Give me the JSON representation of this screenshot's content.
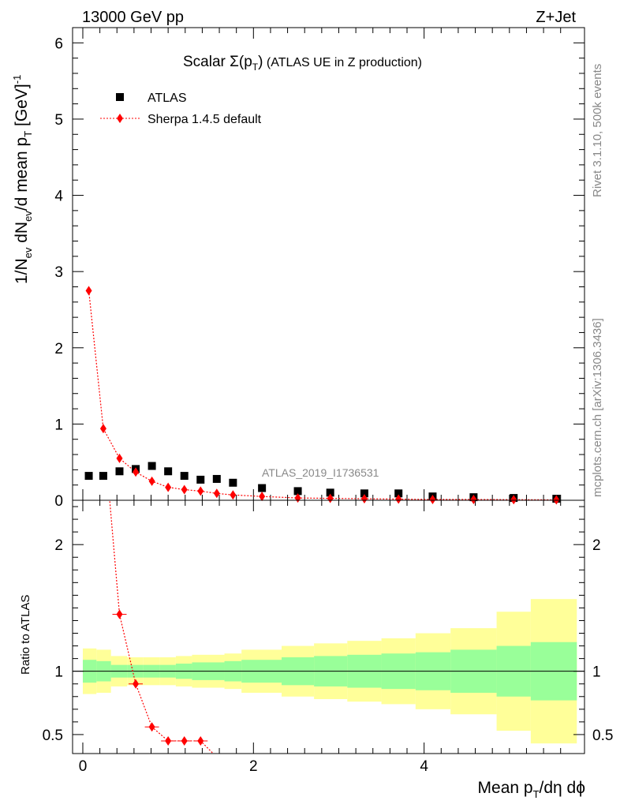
{
  "header": {
    "left": "13000 GeV pp",
    "right": "Z+Jet"
  },
  "side_labels": {
    "rivet": "Rivet 3.1.10,  500k events",
    "source": "mcplots.cern.ch [arXiv:1306.3436]"
  },
  "watermark": "ATLAS_2019_I1736531",
  "chart_data": [
    {
      "type": "scatter",
      "panel": "main",
      "title_main": "Scalar ",
      "title_sigma": "Σ(p",
      "title_sub": "T",
      "title_close": ")",
      "title_rest": " (ATLAS UE in Z production)",
      "ylabel": "1/N_ev dN_ev/d mean p_T [GeV]^-1",
      "ylabel_parts": {
        "a": "1/N",
        "b": "ev",
        "c": " dN",
        "d": "ev",
        "e": "/d mean p",
        "f": "T",
        "g": " [GeV]",
        "h": "-1"
      },
      "xlim": [
        -0.12,
        5.88
      ],
      "ylim": [
        0,
        6.2
      ],
      "yticks": [
        0,
        1,
        2,
        3,
        4,
        5,
        6
      ],
      "ytick_labels": [
        "0",
        "1",
        "2",
        "3",
        "4",
        "5",
        "6"
      ],
      "legend": {
        "position": "top-left",
        "entries": [
          "ATLAS",
          "Sherpa 1.4.5 default"
        ]
      },
      "series": [
        {
          "name": "ATLAS",
          "color": "#000000",
          "marker": "square",
          "x": [
            0.07,
            0.24,
            0.43,
            0.62,
            0.81,
            1.0,
            1.19,
            1.38,
            1.57,
            1.76,
            2.1,
            2.52,
            2.9,
            3.3,
            3.7,
            4.1,
            4.58,
            5.05,
            5.55
          ],
          "y": [
            0.32,
            0.32,
            0.38,
            0.41,
            0.45,
            0.38,
            0.32,
            0.27,
            0.28,
            0.23,
            0.16,
            0.12,
            0.1,
            0.09,
            0.09,
            0.05,
            0.04,
            0.03,
            0.02
          ]
        },
        {
          "name": "Sherpa 1.4.5 default",
          "color": "#ff0000",
          "marker": "diamond",
          "x": [
            0.07,
            0.24,
            0.43,
            0.62,
            0.81,
            1.0,
            1.19,
            1.38,
            1.57,
            1.76,
            2.1,
            2.52,
            2.9,
            3.3,
            3.7,
            4.1,
            4.58,
            5.05,
            5.55
          ],
          "y": [
            2.75,
            0.94,
            0.55,
            0.37,
            0.25,
            0.17,
            0.14,
            0.12,
            0.09,
            0.07,
            0.05,
            0.03,
            0.025,
            0.02,
            0.015,
            0.01,
            0.01,
            0.008,
            0.005
          ]
        }
      ]
    },
    {
      "type": "line",
      "panel": "ratio",
      "ylabel": "Ratio to ATLAS",
      "xlabel_parts": {
        "a": "Mean p",
        "b": "T",
        "c": "/dη dϕ"
      },
      "xlim": [
        -0.12,
        5.88
      ],
      "ylim": [
        0.35,
        2.35
      ],
      "xticks": [
        0,
        2,
        4
      ],
      "xtick_labels": [
        "0",
        "2",
        "4"
      ],
      "yticks": [
        0.5,
        1,
        2
      ],
      "ytick_labels": [
        "0.5",
        "1",
        "2"
      ],
      "bin_edges": [
        0.0,
        0.16,
        0.33,
        0.52,
        0.71,
        0.9,
        1.09,
        1.28,
        1.47,
        1.66,
        1.86,
        2.33,
        2.71,
        3.1,
        3.5,
        3.9,
        4.31,
        4.85,
        5.25,
        5.79
      ],
      "band_inner": {
        "name": "stat",
        "color": "#99ff99",
        "low": [
          0.91,
          0.92,
          0.95,
          0.95,
          0.95,
          0.95,
          0.94,
          0.93,
          0.93,
          0.92,
          0.91,
          0.89,
          0.88,
          0.87,
          0.86,
          0.85,
          0.83,
          0.8,
          0.77
        ],
        "high": [
          1.09,
          1.08,
          1.05,
          1.05,
          1.05,
          1.05,
          1.06,
          1.07,
          1.07,
          1.08,
          1.09,
          1.11,
          1.12,
          1.13,
          1.14,
          1.15,
          1.17,
          1.2,
          1.23
        ]
      },
      "band_outer": {
        "name": "stat+syst",
        "color": "#ffff99",
        "low": [
          0.82,
          0.83,
          0.88,
          0.89,
          0.89,
          0.89,
          0.88,
          0.87,
          0.87,
          0.86,
          0.83,
          0.8,
          0.78,
          0.76,
          0.74,
          0.7,
          0.66,
          0.53,
          0.43
        ],
        "high": [
          1.18,
          1.17,
          1.12,
          1.11,
          1.11,
          1.11,
          1.12,
          1.13,
          1.13,
          1.14,
          1.17,
          1.2,
          1.22,
          1.24,
          1.26,
          1.3,
          1.34,
          1.47,
          1.57
        ]
      },
      "series": [
        {
          "name": "Sherpa 1.4.5 default",
          "color": "#ff0000",
          "x": [
            0.43,
            0.62,
            0.81,
            1.0,
            1.19,
            1.38
          ],
          "y": [
            1.45,
            0.9,
            0.56,
            0.45,
            0.45,
            0.45
          ]
        }
      ]
    }
  ]
}
